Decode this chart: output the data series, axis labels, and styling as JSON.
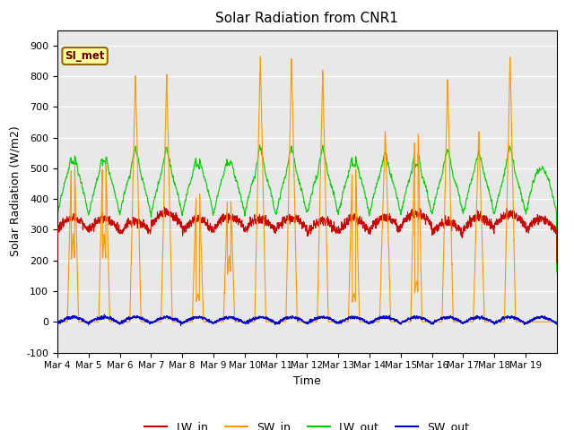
{
  "title": "Solar Radiation from CNR1",
  "xlabel": "Time",
  "ylabel": "Solar Radiation (W/m2)",
  "ylim": [
    -100,
    950
  ],
  "yticks": [
    -100,
    0,
    100,
    200,
    300,
    400,
    500,
    600,
    700,
    800,
    900
  ],
  "num_days": 16,
  "colors": {
    "LW_in": "#cc0000",
    "SW_in": "#ff9900",
    "LW_out": "#00cc00",
    "SW_out": "#0000cc"
  },
  "background_color": "#e8e8e8",
  "annotation_text": "SI_met",
  "annotation_box_color": "#ffff99",
  "annotation_border_color": "#996600",
  "annotation_text_color": "#660000",
  "x_tick_labels": [
    "Mar 4",
    "Mar 5",
    "Mar 6",
    "Mar 7",
    "Mar 8",
    "Mar 9",
    "Mar 10",
    "Mar 11",
    "Mar 12",
    "Mar 13",
    "Mar 14",
    "Mar 15",
    "Mar 16",
    "Mar 17",
    "Mar 18",
    "Mar 19"
  ],
  "n_points_per_day": 288,
  "seed": 42
}
